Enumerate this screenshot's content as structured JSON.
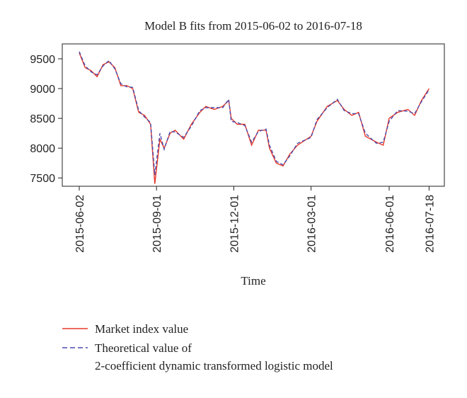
{
  "chart_data": {
    "type": "line",
    "title": "Model B fits from 2015-06-02 to 2016-07-18",
    "xlabel": "Time",
    "x": [
      "2015-06-02",
      "2015-06-09",
      "2015-06-16",
      "2015-06-23",
      "2015-06-30",
      "2015-07-07",
      "2015-07-14",
      "2015-07-21",
      "2015-07-28",
      "2015-08-04",
      "2015-08-11",
      "2015-08-18",
      "2015-08-25",
      "2015-08-30",
      "2015-09-05",
      "2015-09-10",
      "2015-09-17",
      "2015-09-23",
      "2015-10-03",
      "2015-10-12",
      "2015-10-22",
      "2015-10-29",
      "2015-11-08",
      "2015-11-18",
      "2015-11-25",
      "2015-11-28",
      "2015-12-05",
      "2015-12-14",
      "2015-12-22",
      "2015-12-30",
      "2016-01-08",
      "2016-01-12",
      "2016-01-20",
      "2016-01-28",
      "2016-02-05",
      "2016-02-14",
      "2016-03-01",
      "2016-03-08",
      "2016-03-20",
      "2016-04-01",
      "2016-04-09",
      "2016-04-18",
      "2016-04-26",
      "2016-05-04",
      "2016-05-17",
      "2016-05-25",
      "2016-06-01",
      "2016-06-11",
      "2016-06-23",
      "2016-07-01",
      "2016-07-09",
      "2016-07-18"
    ],
    "series": [
      {
        "name": "Market index value",
        "color": "#e8382a",
        "dash": false,
        "values": [
          9600,
          9350,
          9300,
          9200,
          9400,
          9450,
          9350,
          9050,
          9050,
          9000,
          8600,
          8550,
          8400,
          7400,
          8150,
          8000,
          8250,
          8300,
          8150,
          8400,
          8600,
          8700,
          8650,
          8700,
          8800,
          8500,
          8400,
          8400,
          8050,
          8300,
          8300,
          8000,
          7750,
          7700,
          7900,
          8050,
          8200,
          8450,
          8700,
          8800,
          8650,
          8550,
          8600,
          8200,
          8100,
          8050,
          8500,
          8600,
          8650,
          8550,
          8800,
          9000
        ]
      },
      {
        "name": "Theoretical value of\n2-coefficient dynamic transformed logistic model",
        "color": "#4a4fb0",
        "dash": true,
        "values": [
          9620,
          9380,
          9280,
          9230,
          9380,
          9470,
          9330,
          9080,
          9030,
          9020,
          8630,
          8520,
          8430,
          7550,
          8250,
          7980,
          8280,
          8270,
          8180,
          8370,
          8630,
          8680,
          8680,
          8680,
          8820,
          8450,
          8430,
          8380,
          8100,
          8280,
          8320,
          8050,
          7780,
          7720,
          7870,
          8080,
          8180,
          8480,
          8680,
          8820,
          8630,
          8580,
          8580,
          8250,
          8080,
          8100,
          8450,
          8630,
          8620,
          8580,
          8780,
          8980
        ]
      }
    ],
    "xlim": [
      "2015-05-13",
      "2016-08-05"
    ],
    "xticks": [
      "2015-06-02",
      "2015-09-01",
      "2015-12-01",
      "2016-03-01",
      "2016-06-01",
      "2016-07-18"
    ],
    "ylim": [
      7360,
      9750
    ],
    "yticks": [
      7500,
      8000,
      8500,
      9000,
      9500
    ]
  }
}
